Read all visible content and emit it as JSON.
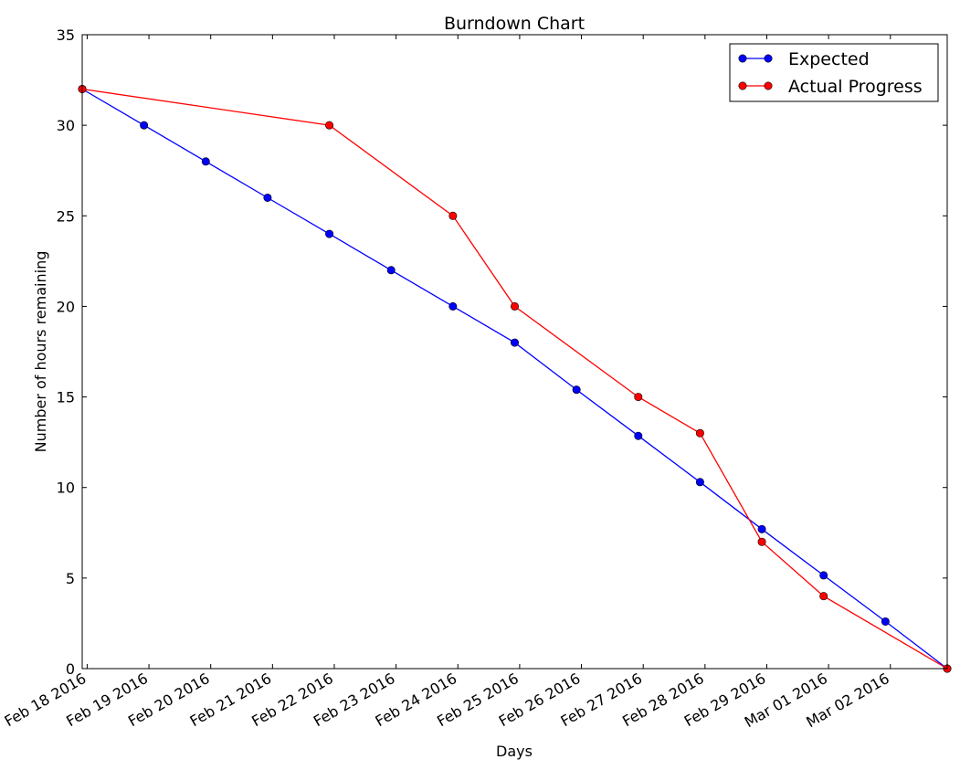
{
  "chart_data": {
    "type": "line",
    "title": "Burndown Chart",
    "xlabel": "Days",
    "ylabel": "Number of hours remaining",
    "x_tick_labels": [
      "Feb 18 2016",
      "Feb 19 2016",
      "Feb 20 2016",
      "Feb 21 2016",
      "Feb 22 2016",
      "Feb 23 2016",
      "Feb 24 2016",
      "Feb 25 2016",
      "Feb 26 2016",
      "Feb 27 2016",
      "Feb 28 2016",
      "Feb 29 2016",
      "Mar 01 2016",
      "Mar 02 2016"
    ],
    "y_ticks": [
      0,
      5,
      10,
      15,
      20,
      25,
      30,
      35
    ],
    "xlim": [
      "2016-02-18",
      "2016-03-03"
    ],
    "ylim": [
      0,
      35
    ],
    "grid": false,
    "legend_position": "top-right",
    "series": [
      {
        "name": "Expected",
        "color": "#0000ff",
        "points": [
          {
            "x": "2016-02-18",
            "y": 32
          },
          {
            "x": "2016-02-19",
            "y": 30
          },
          {
            "x": "2016-02-20",
            "y": 28
          },
          {
            "x": "2016-02-21",
            "y": 26
          },
          {
            "x": "2016-02-22",
            "y": 24
          },
          {
            "x": "2016-02-23",
            "y": 22
          },
          {
            "x": "2016-02-24",
            "y": 20
          },
          {
            "x": "2016-02-25",
            "y": 18
          },
          {
            "x": "2016-02-26",
            "y": 15.4
          },
          {
            "x": "2016-02-27",
            "y": 12.85
          },
          {
            "x": "2016-02-28",
            "y": 10.3
          },
          {
            "x": "2016-02-29",
            "y": 7.7
          },
          {
            "x": "2016-03-01",
            "y": 5.15
          },
          {
            "x": "2016-03-02",
            "y": 2.6
          },
          {
            "x": "2016-03-03",
            "y": 0
          }
        ]
      },
      {
        "name": "Actual Progress",
        "color": "#ff0000",
        "points": [
          {
            "x": "2016-02-18",
            "y": 32
          },
          {
            "x": "2016-02-22",
            "y": 30
          },
          {
            "x": "2016-02-24",
            "y": 25
          },
          {
            "x": "2016-02-25",
            "y": 20
          },
          {
            "x": "2016-02-27",
            "y": 15
          },
          {
            "x": "2016-02-28",
            "y": 13
          },
          {
            "x": "2016-02-29",
            "y": 7
          },
          {
            "x": "2016-03-01",
            "y": 4
          },
          {
            "x": "2016-03-03",
            "y": 0
          }
        ]
      }
    ]
  }
}
